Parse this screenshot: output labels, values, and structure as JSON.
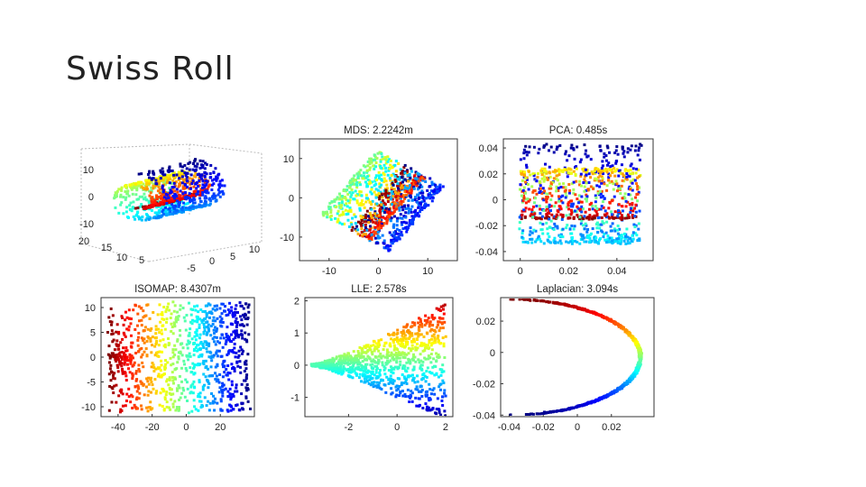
{
  "slide": {
    "title": "Swiss Roll"
  },
  "chart_data": [
    {
      "id": "original",
      "type": "scatter",
      "title": "",
      "projection": "3d",
      "z_ticks": [
        "10",
        "0",
        "-10"
      ],
      "y_ticks": [
        "20",
        "15",
        "10",
        "5"
      ],
      "x_ticks": [
        "-5",
        "0",
        "5",
        "10"
      ],
      "colormap": "jet"
    },
    {
      "id": "mds",
      "type": "scatter",
      "title": "MDS: 2.2242m",
      "xlim": [
        -16,
        16
      ],
      "ylim": [
        -16,
        15
      ],
      "x_ticks": [
        -10,
        0,
        10
      ],
      "y_ticks": [
        10,
        0,
        -10
      ],
      "colormap": "jet"
    },
    {
      "id": "pca",
      "type": "scatter",
      "title": "PCA: 0.485s",
      "xlim": [
        -0.007,
        0.055
      ],
      "ylim": [
        -0.047,
        0.047
      ],
      "x_ticks": [
        0,
        0.02,
        0.04
      ],
      "y_ticks": [
        0.04,
        0.02,
        0,
        -0.02,
        -0.04
      ],
      "colormap": "jet"
    },
    {
      "id": "isomap",
      "type": "scatter",
      "title": "ISOMAP: 8.4307m",
      "xlim": [
        -50,
        40
      ],
      "ylim": [
        -12,
        12
      ],
      "x_ticks": [
        -40,
        -20,
        0,
        20
      ],
      "y_ticks": [
        10,
        5,
        0,
        -5,
        -10
      ],
      "colormap": "jet"
    },
    {
      "id": "lle",
      "type": "scatter",
      "title": "LLE: 2.578s",
      "xlim": [
        -3.8,
        2.3
      ],
      "ylim": [
        -1.6,
        2.1
      ],
      "x_ticks": [
        -2,
        0,
        2
      ],
      "y_ticks": [
        2,
        1,
        0,
        -1
      ],
      "colormap": "jet"
    },
    {
      "id": "laplacian",
      "type": "scatter",
      "title": "Laplacian: 3.094s",
      "xlim": [
        -0.045,
        0.045
      ],
      "ylim": [
        -0.041,
        0.035
      ],
      "x_ticks": [
        -0.04,
        -0.02,
        0,
        0.02
      ],
      "y_ticks": [
        0.02,
        0,
        -0.02,
        -0.04
      ],
      "colormap": "jet"
    }
  ]
}
